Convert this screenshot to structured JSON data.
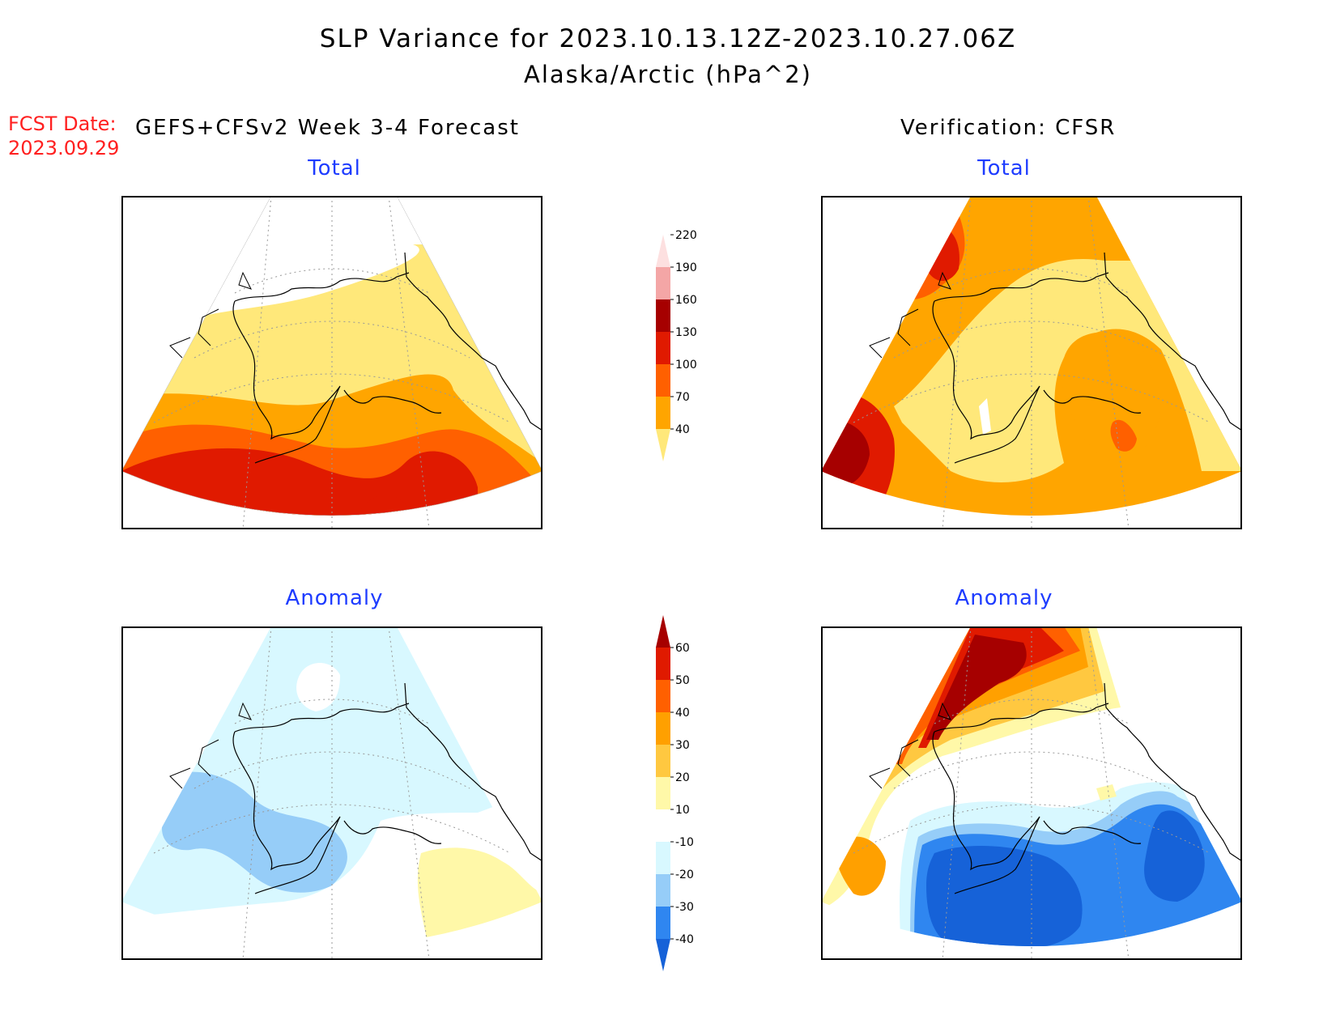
{
  "title": {
    "line1": "SLP Variance for 2023.10.13.12Z-2023.10.27.06Z",
    "line2": "Alaska/Arctic (hPa^2)"
  },
  "fcst": {
    "label": "FCST Date:",
    "date": "2023.09.29"
  },
  "left_header": "GEFS+CFSv2 Week 3-4 Forecast",
  "right_header": "Verification: CFSR",
  "panels": {
    "forecast_total": "Total",
    "verification_total": "Total",
    "forecast_anomaly": "Anomaly",
    "verification_anomaly": "Anomaly"
  },
  "colorbar_total": {
    "levels": [
      "40",
      "70",
      "100",
      "130",
      "160",
      "190",
      "220"
    ],
    "colors": [
      "#ffe87a",
      "#ffa500",
      "#ff6000",
      "#e01a00",
      "#a60000",
      "#f4a6a6",
      "#fde0e0"
    ]
  },
  "colorbar_anomaly": {
    "levels": [
      "-40",
      "-30",
      "-20",
      "-10",
      "10",
      "20",
      "30",
      "40",
      "50",
      "60"
    ],
    "colors": [
      "#1662d8",
      "#2f86f0",
      "#96cdf8",
      "#d8f8ff",
      "#ffffff",
      "#fff8a8",
      "#ffc840",
      "#ffa000",
      "#ff6000",
      "#e01a00",
      "#a60000"
    ]
  }
}
